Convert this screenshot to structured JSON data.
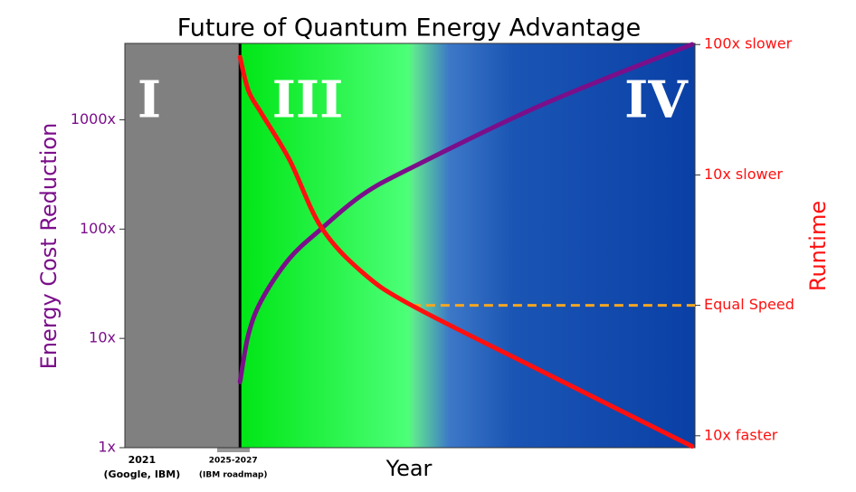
{
  "chart_data": {
    "type": "line",
    "title": "Future of Quantum Energy Advantage",
    "x_label": "Year",
    "y_label": "Energy Cost Reduction",
    "y2_label": "Runtime",
    "log_y": true,
    "log_y2": true,
    "xlim": [
      0,
      100
    ],
    "xticks": [
      {
        "value": 3,
        "label": "2021"
      },
      {
        "value": 19,
        "label": "2025-2027"
      }
    ],
    "xtick_sublabels": [
      "(Google, IBM)",
      "(IBM roadmap)"
    ],
    "ylim": [
      1,
      5000
    ],
    "yticks": [
      {
        "value": 1,
        "label": "1x"
      },
      {
        "value": 10,
        "label": "10x"
      },
      {
        "value": 100,
        "label": "100x"
      },
      {
        "value": 1000,
        "label": "1000x"
      }
    ],
    "y2lim": [
      0.081,
      102
    ],
    "y2ticks": [
      {
        "value": 0.1,
        "label": "10x faster"
      },
      {
        "value": 1,
        "label": "Equal Speed"
      },
      {
        "value": 10,
        "label": "10x slower"
      },
      {
        "value": 100,
        "label": "100x slower"
      }
    ],
    "regions": [
      {
        "label": "I",
        "x0": 0,
        "x1": 20.2
      },
      {
        "label": "III",
        "x0": 20.2,
        "x1": 50.3
      },
      {
        "label": "IV",
        "x0": 50.3,
        "x1": 100
      }
    ],
    "x": [
      20.2,
      21.7,
      24.1,
      28.9,
      34.4,
      41.6,
      50.3,
      73.3,
      99.5
    ],
    "series": [
      {
        "color": "#7b0f8a",
        "values": [
          4,
          11,
          23,
          54,
          100,
          205,
          365,
          1380,
          4900
        ]
      },
      {
        "color": "#ff1010",
        "axis": "y2",
        "values": [
          80,
          44,
          29,
          13,
          4,
          1.8,
          1,
          0.31,
          0.083
        ]
      }
    ],
    "reference_line": {
      "y2": 1,
      "x0": 50.3,
      "x1": 100,
      "color": "#f5a623"
    }
  }
}
